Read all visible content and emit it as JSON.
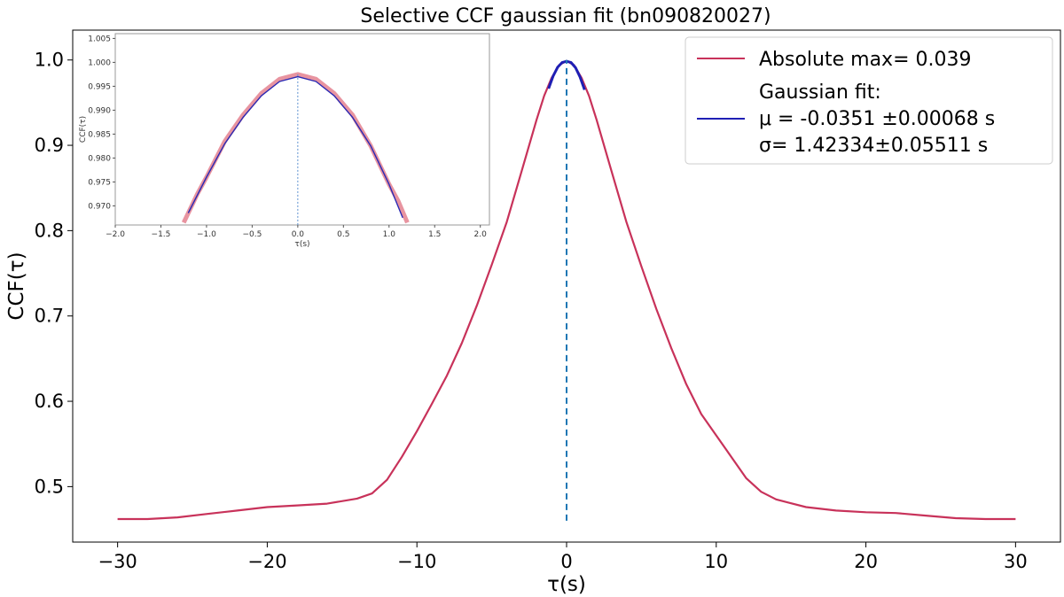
{
  "chart_data": {
    "type": "line",
    "title": "Selective CCF gaussian fit (bn090820027)",
    "xlabel": "τ(s)",
    "ylabel": "CCF(τ)",
    "xlim": [
      -33,
      33
    ],
    "ylim": [
      0.435,
      1.035
    ],
    "xticks": [
      "−30",
      "−20",
      "−10",
      "0",
      "10",
      "20",
      "30"
    ],
    "xtick_values": [
      -30,
      -20,
      -10,
      0,
      10,
      20,
      30
    ],
    "yticks": [
      "0.5",
      "0.6",
      "0.7",
      "0.8",
      "0.9",
      "1.0"
    ],
    "ytick_values": [
      0.5,
      0.6,
      0.7,
      0.8,
      0.9,
      1.0
    ],
    "grid": false,
    "legend_position": "top-right",
    "series": [
      {
        "name": "Absolute max= 0.039",
        "color": "#c8325a",
        "x": [
          -30,
          -28,
          -26,
          -24,
          -22,
          -20,
          -18,
          -16,
          -14,
          -13,
          -12,
          -11,
          -10,
          -9,
          -8,
          -7,
          -6,
          -5,
          -4,
          -3,
          -2,
          -1.5,
          -1,
          -0.5,
          0,
          0.5,
          1,
          1.5,
          2,
          3,
          4,
          5,
          6,
          7,
          8,
          9,
          10,
          11,
          12,
          13,
          14,
          16,
          18,
          20,
          22,
          24,
          26,
          28,
          30
        ],
        "y": [
          0.462,
          0.462,
          0.464,
          0.468,
          0.472,
          0.476,
          0.478,
          0.48,
          0.486,
          0.492,
          0.508,
          0.535,
          0.565,
          0.597,
          0.63,
          0.668,
          0.712,
          0.76,
          0.81,
          0.87,
          0.93,
          0.958,
          0.979,
          0.994,
          0.999,
          0.994,
          0.979,
          0.958,
          0.93,
          0.87,
          0.81,
          0.758,
          0.708,
          0.662,
          0.62,
          0.585,
          0.56,
          0.535,
          0.51,
          0.494,
          0.485,
          0.476,
          0.472,
          0.47,
          0.469,
          0.466,
          0.463,
          0.462,
          0.462
        ]
      },
      {
        "name": "Gaussian fit:",
        "color": "#1f1fb4",
        "x": [
          -1.2,
          -0.9,
          -0.6,
          -0.3,
          0,
          0.3,
          0.6,
          0.9,
          1.2
        ],
        "y": [
          0.9665,
          0.981,
          0.9915,
          0.997,
          0.9985,
          0.997,
          0.991,
          0.98,
          0.965
        ]
      }
    ],
    "vline": {
      "x": 0,
      "ymin": 0.46,
      "ymax": 1.0,
      "color": "#1f77b4"
    },
    "legend": {
      "entries": [
        "Absolute max= 0.039",
        "Gaussian fit:"
      ],
      "fit_lines": [
        "μ =  -0.0351 ±0.00068 s",
        "σ= 1.42334±0.05511 s"
      ]
    },
    "inset": {
      "xlabel": "τ(s)",
      "ylabel": "CCF(τ)",
      "xlim": [
        -2.0,
        2.1
      ],
      "ylim": [
        0.966,
        1.006
      ],
      "xticks": [
        "−2.0",
        "−1.5",
        "−1.0",
        "−0.5",
        "0.0",
        "0.5",
        "1.0",
        "1.5",
        "2.0"
      ],
      "xtick_values": [
        -2.0,
        -1.5,
        -1.0,
        -0.5,
        0.0,
        0.5,
        1.0,
        1.5,
        2.0
      ],
      "yticks": [
        "0.970",
        "0.975",
        "0.980",
        "0.985",
        "0.990",
        "0.995",
        "1.000",
        "1.005"
      ],
      "ytick_values": [
        0.97,
        0.975,
        0.98,
        0.985,
        0.99,
        0.995,
        1.0,
        1.005
      ],
      "data_series": {
        "color": "#e07080",
        "x": [
          -1.25,
          -1.1,
          -1.0,
          -0.8,
          -0.6,
          -0.4,
          -0.2,
          0,
          0.2,
          0.4,
          0.6,
          0.8,
          1.0,
          1.1,
          1.2
        ],
        "y": [
          0.9665,
          0.9725,
          0.976,
          0.9835,
          0.989,
          0.9935,
          0.9965,
          0.9975,
          0.9965,
          0.9935,
          0.989,
          0.9825,
          0.9745,
          0.971,
          0.9665
        ]
      },
      "fit_series": {
        "color": "#2a2ab4",
        "x": [
          -1.2,
          -1.0,
          -0.8,
          -0.6,
          -0.4,
          -0.2,
          0,
          0.2,
          0.4,
          0.6,
          0.8,
          1.0,
          1.15
        ],
        "y": [
          0.9685,
          0.976,
          0.983,
          0.9885,
          0.993,
          0.996,
          0.997,
          0.996,
          0.993,
          0.9885,
          0.9825,
          0.9745,
          0.9675
        ]
      },
      "vline": {
        "x": 0,
        "color": "#5a8fd0"
      }
    }
  }
}
